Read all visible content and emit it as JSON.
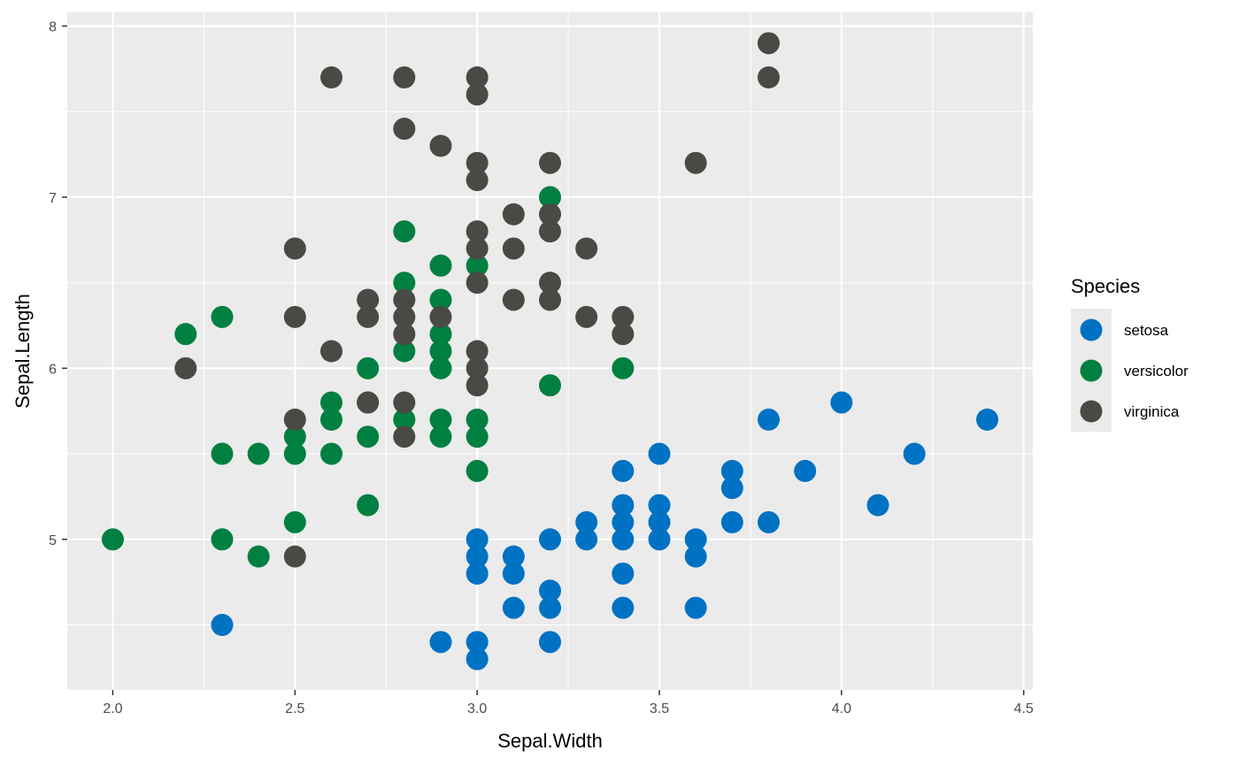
{
  "chart_data": {
    "type": "scatter",
    "title": "",
    "xlabel": "Sepal.Width",
    "ylabel": "Sepal.Length",
    "xlim": [
      1.875,
      4.525
    ],
    "ylim": [
      4.12,
      8.08
    ],
    "x_ticks": [
      2.0,
      2.5,
      3.0,
      3.5,
      4.0,
      4.5
    ],
    "x_tick_labels": [
      "2.0",
      "2.5",
      "3.0",
      "3.5",
      "4.0",
      "4.5"
    ],
    "y_ticks": [
      5,
      6,
      7,
      8
    ],
    "y_tick_labels": [
      "5",
      "6",
      "7",
      "8"
    ],
    "grid": true,
    "legend": {
      "title": "Species",
      "placement": "right"
    },
    "background": "#ebebeb",
    "series": [
      {
        "name": "setosa",
        "color": "#0072c3",
        "points": [
          [
            4.4,
            5.7
          ],
          [
            4.2,
            5.5
          ],
          [
            4.1,
            5.2
          ],
          [
            4.0,
            5.8
          ],
          [
            3.9,
            5.4
          ],
          [
            3.8,
            5.7
          ],
          [
            3.8,
            5.1
          ],
          [
            3.7,
            5.4
          ],
          [
            3.7,
            5.3
          ],
          [
            3.7,
            5.1
          ],
          [
            3.6,
            5.0
          ],
          [
            3.6,
            4.9
          ],
          [
            3.6,
            4.6
          ],
          [
            3.5,
            5.5
          ],
          [
            3.5,
            5.2
          ],
          [
            3.5,
            5.1
          ],
          [
            3.5,
            5.0
          ],
          [
            3.4,
            5.4
          ],
          [
            3.4,
            5.2
          ],
          [
            3.4,
            5.1
          ],
          [
            3.4,
            5.0
          ],
          [
            3.4,
            4.8
          ],
          [
            3.4,
            4.6
          ],
          [
            3.3,
            5.1
          ],
          [
            3.3,
            5.0
          ],
          [
            3.2,
            5.0
          ],
          [
            3.2,
            4.7
          ],
          [
            3.2,
            4.6
          ],
          [
            3.2,
            4.4
          ],
          [
            3.1,
            4.9
          ],
          [
            3.1,
            4.8
          ],
          [
            3.1,
            4.6
          ],
          [
            3.0,
            5.0
          ],
          [
            3.0,
            4.9
          ],
          [
            3.0,
            4.8
          ],
          [
            3.0,
            4.4
          ],
          [
            3.0,
            4.3
          ],
          [
            2.9,
            4.4
          ],
          [
            2.3,
            4.5
          ]
        ]
      },
      {
        "name": "versicolor",
        "color": "#008040",
        "points": [
          [
            2.0,
            5.0
          ],
          [
            2.2,
            6.2
          ],
          [
            2.3,
            6.3
          ],
          [
            2.3,
            5.5
          ],
          [
            2.3,
            5.0
          ],
          [
            2.4,
            5.5
          ],
          [
            2.4,
            4.9
          ],
          [
            2.5,
            5.6
          ],
          [
            2.5,
            5.5
          ],
          [
            2.5,
            5.1
          ],
          [
            2.6,
            5.8
          ],
          [
            2.6,
            5.7
          ],
          [
            2.6,
            5.5
          ],
          [
            2.7,
            6.0
          ],
          [
            2.7,
            5.8
          ],
          [
            2.7,
            5.6
          ],
          [
            2.7,
            5.2
          ],
          [
            2.8,
            6.8
          ],
          [
            2.8,
            6.5
          ],
          [
            2.8,
            6.1
          ],
          [
            2.8,
            5.7
          ],
          [
            2.9,
            6.6
          ],
          [
            2.9,
            6.4
          ],
          [
            2.9,
            6.2
          ],
          [
            2.9,
            6.1
          ],
          [
            2.9,
            6.0
          ],
          [
            2.9,
            5.7
          ],
          [
            2.9,
            5.6
          ],
          [
            3.0,
            6.6
          ],
          [
            3.0,
            5.7
          ],
          [
            3.0,
            5.6
          ],
          [
            3.0,
            5.4
          ],
          [
            3.2,
            7.0
          ],
          [
            3.2,
            5.9
          ],
          [
            3.4,
            6.0
          ]
        ]
      },
      {
        "name": "virginica",
        "color": "#4a4a45",
        "points": [
          [
            2.2,
            6.0
          ],
          [
            2.5,
            6.7
          ],
          [
            2.5,
            6.3
          ],
          [
            2.5,
            5.7
          ],
          [
            2.5,
            4.9
          ],
          [
            2.6,
            7.7
          ],
          [
            2.6,
            6.1
          ],
          [
            2.7,
            6.4
          ],
          [
            2.7,
            6.3
          ],
          [
            2.7,
            5.8
          ],
          [
            2.8,
            7.7
          ],
          [
            2.8,
            7.4
          ],
          [
            2.8,
            6.4
          ],
          [
            2.8,
            6.3
          ],
          [
            2.8,
            6.2
          ],
          [
            2.8,
            5.8
          ],
          [
            2.8,
            5.6
          ],
          [
            2.9,
            7.3
          ],
          [
            2.9,
            6.3
          ],
          [
            3.0,
            7.7
          ],
          [
            3.0,
            7.6
          ],
          [
            3.0,
            7.2
          ],
          [
            3.0,
            7.1
          ],
          [
            3.0,
            6.8
          ],
          [
            3.0,
            6.7
          ],
          [
            3.0,
            6.5
          ],
          [
            3.0,
            6.1
          ],
          [
            3.0,
            6.0
          ],
          [
            3.0,
            5.9
          ],
          [
            3.1,
            6.9
          ],
          [
            3.1,
            6.7
          ],
          [
            3.1,
            6.4
          ],
          [
            3.2,
            7.2
          ],
          [
            3.2,
            6.9
          ],
          [
            3.2,
            6.8
          ],
          [
            3.2,
            6.5
          ],
          [
            3.2,
            6.4
          ],
          [
            3.3,
            6.7
          ],
          [
            3.3,
            6.3
          ],
          [
            3.4,
            6.3
          ],
          [
            3.4,
            6.2
          ],
          [
            3.6,
            7.2
          ],
          [
            3.8,
            7.9
          ],
          [
            3.8,
            7.7
          ]
        ]
      }
    ]
  }
}
